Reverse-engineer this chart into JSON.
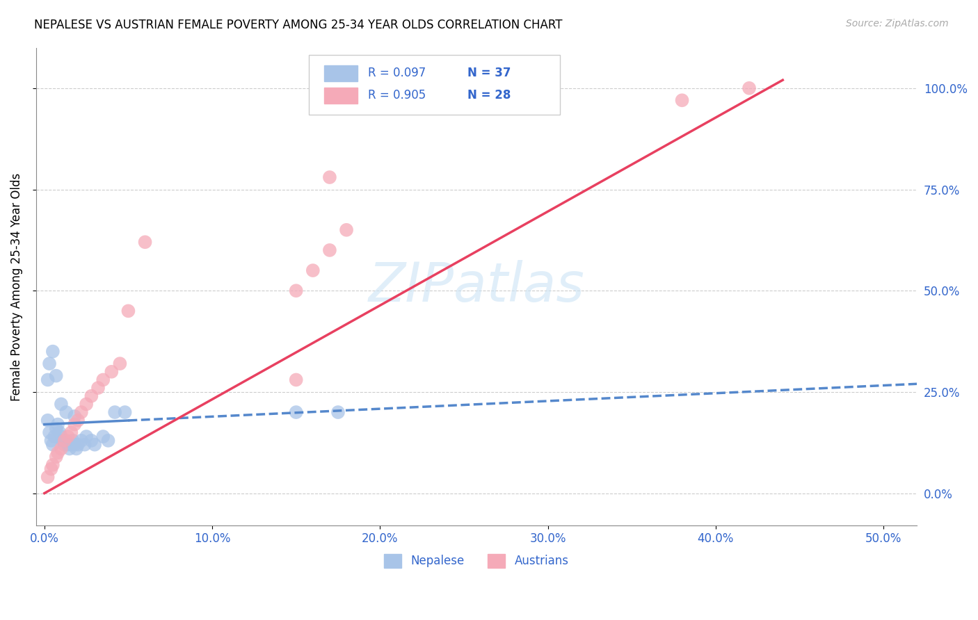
{
  "title": "NEPALESE VS AUSTRIAN FEMALE POVERTY AMONG 25-34 YEAR OLDS CORRELATION CHART",
  "source": "Source: ZipAtlas.com",
  "ylabel": "Female Poverty Among 25-34 Year Olds",
  "x_ticks": [
    0.0,
    0.1,
    0.2,
    0.3,
    0.4,
    0.5
  ],
  "x_tick_labels": [
    "0.0%",
    "10.0%",
    "20.0%",
    "30.0%",
    "40.0%",
    "50.0%"
  ],
  "y_ticks": [
    0.0,
    0.25,
    0.5,
    0.75,
    1.0
  ],
  "y_tick_labels_left": [
    "",
    "",
    "",
    "",
    ""
  ],
  "y_tick_labels_right": [
    "0.0%",
    "25.0%",
    "50.0%",
    "75.0%",
    "100.0%"
  ],
  "xlim": [
    -0.005,
    0.52
  ],
  "ylim": [
    -0.08,
    1.1
  ],
  "nepalese_color": "#a8c4e8",
  "austrians_color": "#f5aab8",
  "nepalese_line_color": "#5588cc",
  "austrians_line_color": "#e84060",
  "nepalese_R": 0.097,
  "nepalese_N": 37,
  "austrians_R": 0.905,
  "austrians_N": 28,
  "legend_color": "#3366cc",
  "watermark": "ZIPatlas",
  "nepalese_x": [
    0.002,
    0.003,
    0.004,
    0.005,
    0.006,
    0.007,
    0.008,
    0.009,
    0.01,
    0.011,
    0.012,
    0.013,
    0.014,
    0.015,
    0.016,
    0.017,
    0.018,
    0.019,
    0.02,
    0.022,
    0.024,
    0.025,
    0.028,
    0.03,
    0.035,
    0.038,
    0.042,
    0.048,
    0.002,
    0.003,
    0.005,
    0.007,
    0.01,
    0.013,
    0.018,
    0.15,
    0.175
  ],
  "nepalese_y": [
    0.18,
    0.15,
    0.13,
    0.12,
    0.14,
    0.16,
    0.17,
    0.15,
    0.14,
    0.13,
    0.12,
    0.13,
    0.12,
    0.11,
    0.12,
    0.13,
    0.12,
    0.11,
    0.12,
    0.13,
    0.12,
    0.14,
    0.13,
    0.12,
    0.14,
    0.13,
    0.2,
    0.2,
    0.28,
    0.32,
    0.35,
    0.29,
    0.22,
    0.2,
    0.19,
    0.2,
    0.2
  ],
  "austrians_x": [
    0.002,
    0.004,
    0.005,
    0.007,
    0.008,
    0.01,
    0.012,
    0.014,
    0.016,
    0.018,
    0.02,
    0.022,
    0.025,
    0.028,
    0.032,
    0.035,
    0.04,
    0.045,
    0.05,
    0.06,
    0.15,
    0.16,
    0.17,
    0.18,
    0.15,
    0.17,
    0.38,
    0.42
  ],
  "austrians_y": [
    0.04,
    0.06,
    0.07,
    0.09,
    0.1,
    0.11,
    0.13,
    0.14,
    0.15,
    0.17,
    0.18,
    0.2,
    0.22,
    0.24,
    0.26,
    0.28,
    0.3,
    0.32,
    0.45,
    0.62,
    0.5,
    0.55,
    0.6,
    0.65,
    0.28,
    0.78,
    0.97,
    1.0
  ],
  "nep_trend_x": [
    0.0,
    0.52
  ],
  "nep_trend_y": [
    0.17,
    0.27
  ],
  "aus_trend_x": [
    0.0,
    0.44
  ],
  "aus_trend_y": [
    0.0,
    1.02
  ]
}
